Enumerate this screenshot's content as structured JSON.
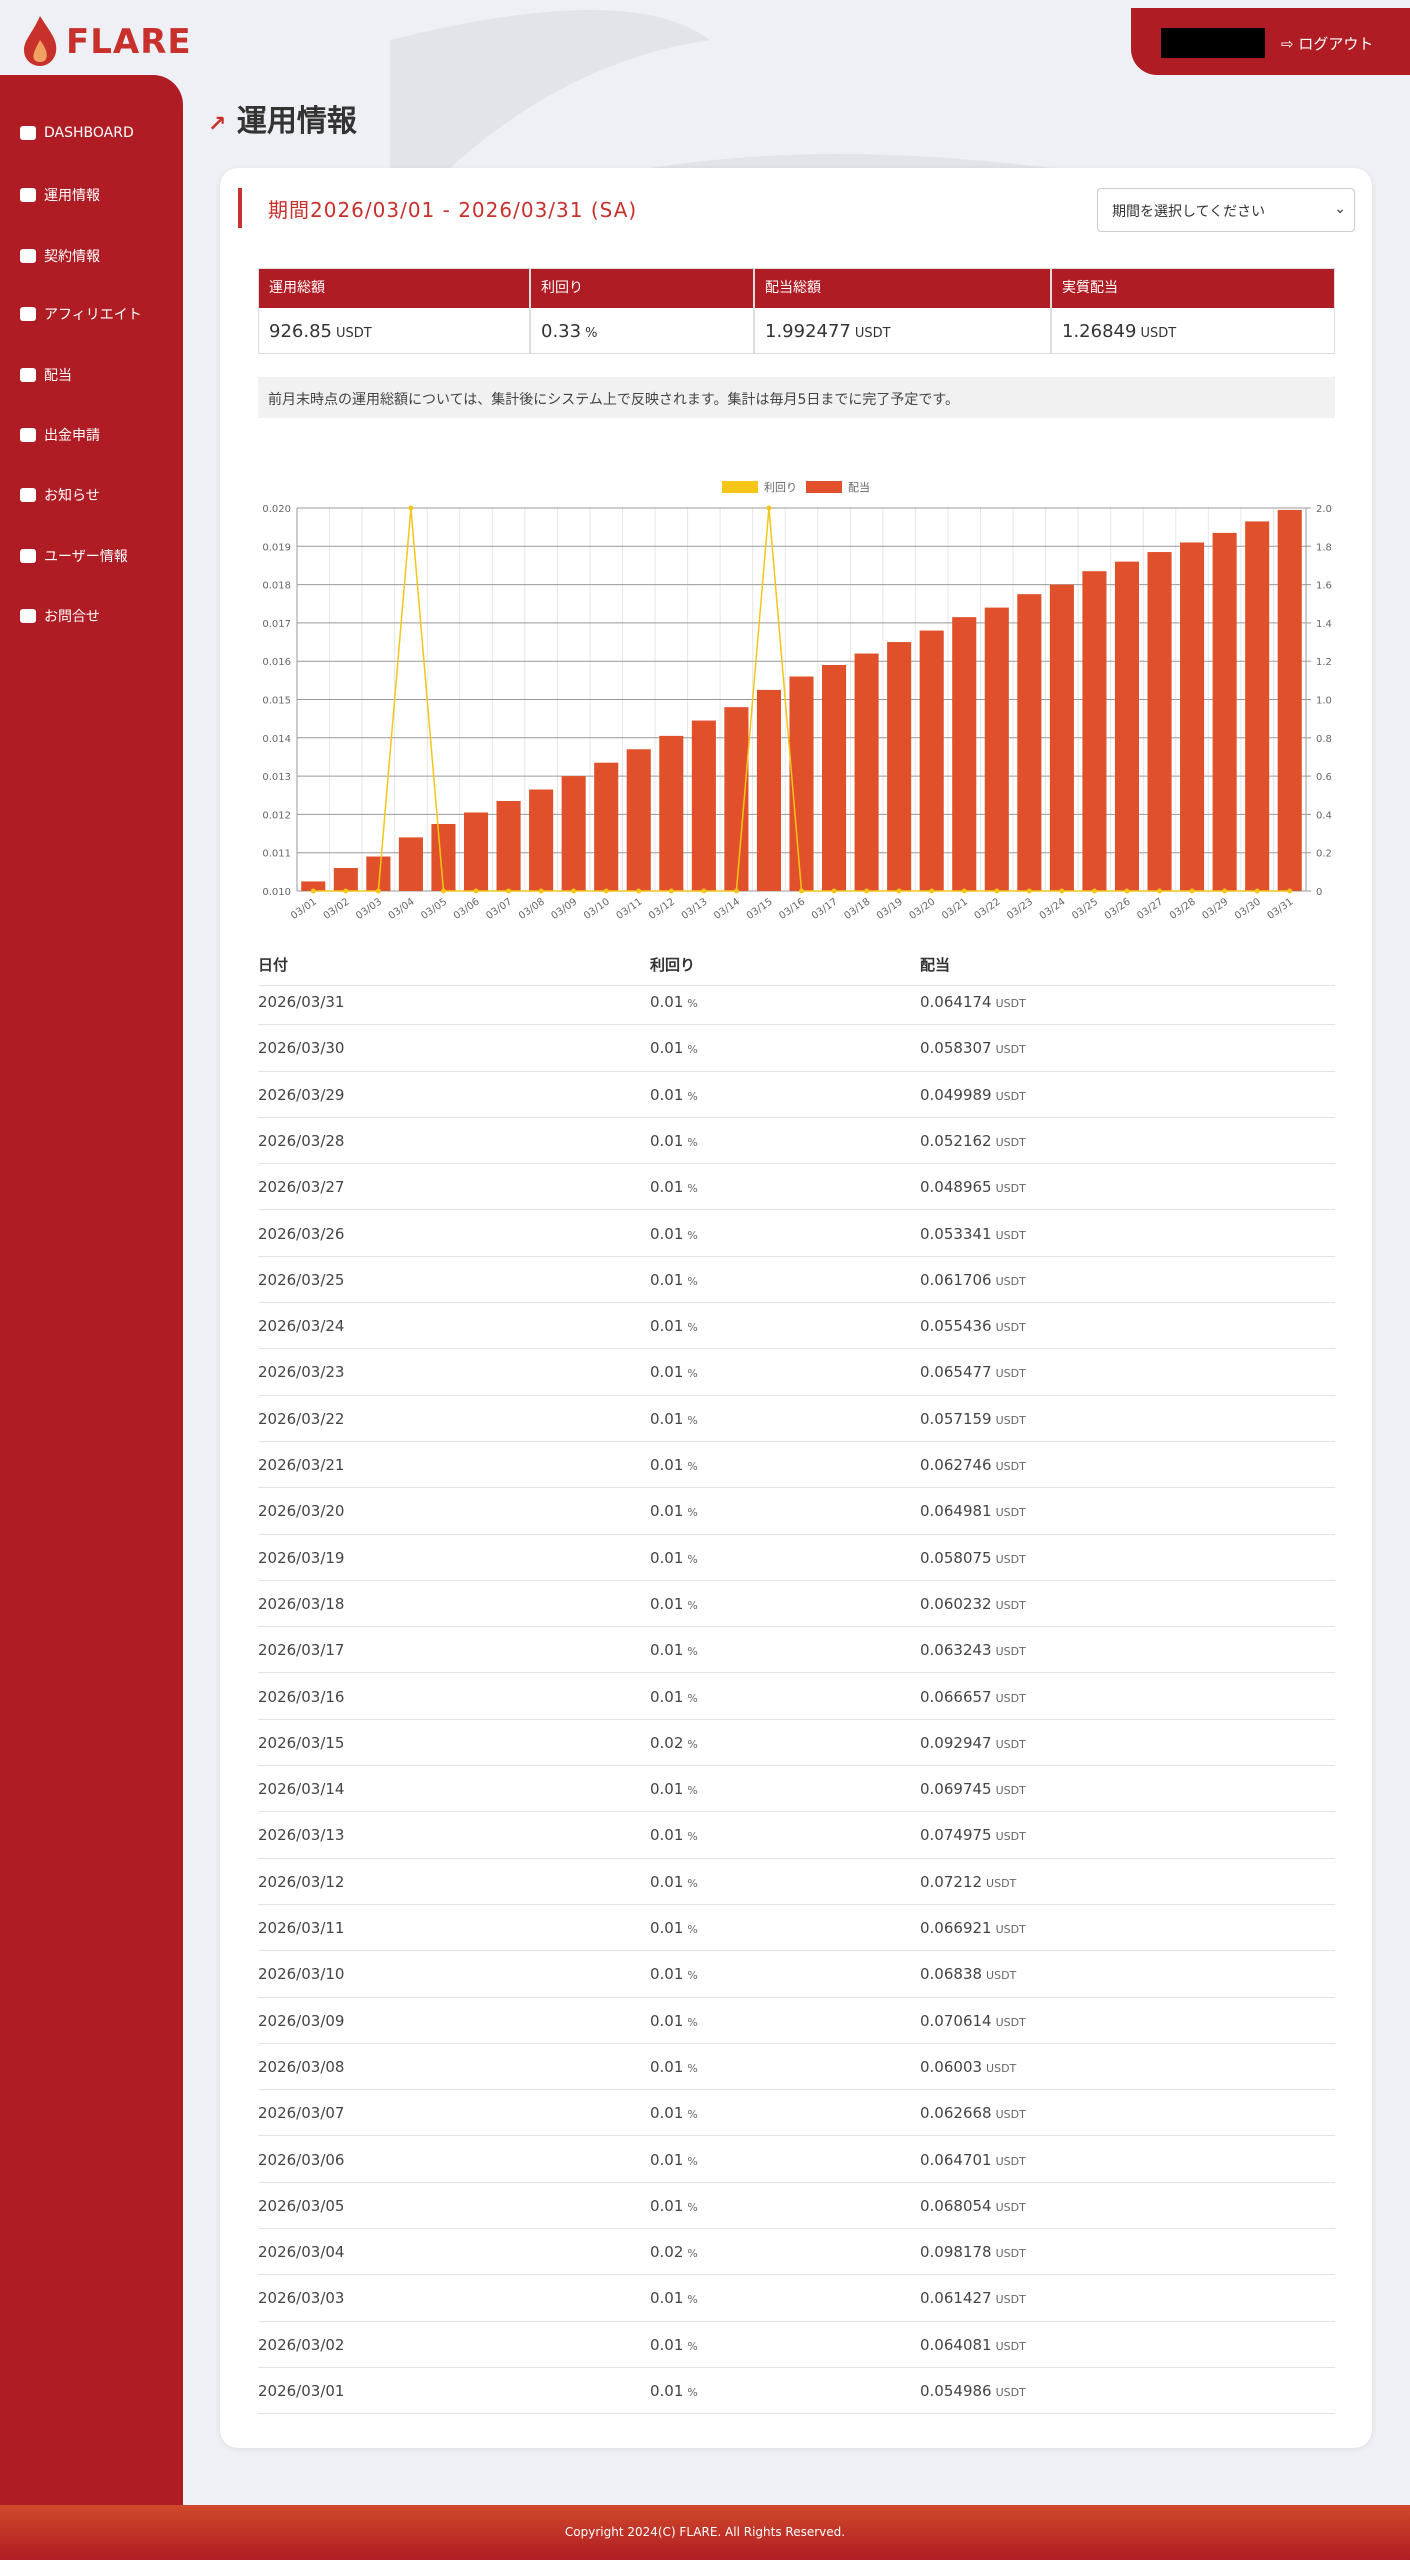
{
  "header": {
    "logo": "FLARE",
    "logout": "ログアウト"
  },
  "nav": {
    "items": [
      "DASHBOARD",
      "運用情報",
      "契約情報",
      "アフィリエイト",
      "配当",
      "出金申請",
      "お知らせ",
      "ユーザー情報",
      "お問合せ"
    ]
  },
  "page": {
    "title": "運用情報",
    "period": "期間2026/03/01 - 2026/03/31 (SA)",
    "select": "期間を選択してください"
  },
  "summary": {
    "headers": [
      "運用総額",
      "利回り",
      "配当総額",
      "実質配当"
    ],
    "values": [
      [
        "926.85",
        "USDT"
      ],
      [
        "0.33",
        "%"
      ],
      [
        "1.992477",
        "USDT"
      ],
      [
        "1.26849",
        "USDT"
      ]
    ]
  },
  "note": "前月末時点の運用総額については、集計後にシステム上で反映されます。集計は毎月5日までに完了予定です。",
  "chart_data": {
    "type": "bar",
    "grid": true,
    "categories": [
      "03/01",
      "03/02",
      "03/03",
      "03/04",
      "03/05",
      "03/06",
      "03/07",
      "03/08",
      "03/09",
      "03/10",
      "03/11",
      "03/12",
      "03/13",
      "03/14",
      "03/15",
      "03/16",
      "03/17",
      "03/18",
      "03/19",
      "03/20",
      "03/21",
      "03/22",
      "03/23",
      "03/24",
      "03/25",
      "03/26",
      "03/27",
      "03/28",
      "03/29",
      "03/30",
      "03/31"
    ],
    "series": [
      {
        "name": "利回り",
        "color": "#f5c518",
        "type": "line",
        "values": [
          0.01,
          0.01,
          0.01,
          0.02,
          0.01,
          0.01,
          0.01,
          0.01,
          0.01,
          0.01,
          0.01,
          0.01,
          0.01,
          0.01,
          0.02,
          0.01,
          0.01,
          0.01,
          0.01,
          0.01,
          0.01,
          0.01,
          0.01,
          0.01,
          0.01,
          0.01,
          0.01,
          0.01,
          0.01,
          0.01,
          0.01
        ]
      },
      {
        "name": "配当",
        "color": "#e0502a",
        "type": "bar",
        "axis": "y2",
        "values": [
          0.05,
          0.12,
          0.18,
          0.28,
          0.35,
          0.41,
          0.47,
          0.53,
          0.6,
          0.67,
          0.74,
          0.81,
          0.89,
          0.96,
          1.05,
          1.12,
          1.18,
          1.24,
          1.3,
          1.36,
          1.43,
          1.48,
          1.55,
          1.6,
          1.67,
          1.72,
          1.77,
          1.82,
          1.87,
          1.93,
          1.99
        ]
      }
    ],
    "ylim": [
      0.01,
      0.02
    ],
    "yticks": [
      {
        "value": 0.01,
        "label": "0.010"
      },
      {
        "value": 0.011,
        "label": "0.011"
      },
      {
        "value": 0.012,
        "label": "0.012"
      },
      {
        "value": 0.013,
        "label": "0.013"
      },
      {
        "value": 0.014,
        "label": "0.014"
      },
      {
        "value": 0.015,
        "label": "0.015"
      },
      {
        "value": 0.016,
        "label": "0.016"
      },
      {
        "value": 0.017,
        "label": "0.017"
      },
      {
        "value": 0.018,
        "label": "0.018"
      },
      {
        "value": 0.019,
        "label": "0.019"
      },
      {
        "value": 0.02,
        "label": "0.020"
      }
    ],
    "y2lim": [
      0,
      2
    ],
    "y2ticks": [
      0,
      {
        "value": 0.2,
        "label": "0.2"
      },
      {
        "value": 0.4,
        "label": "0.4"
      },
      {
        "value": 0.6,
        "label": "0.6"
      },
      {
        "value": 0.8,
        "label": "0.8"
      },
      {
        "value": 1,
        "label": "1.0"
      },
      {
        "value": 1.2,
        "label": "1.2"
      },
      {
        "value": 1.4,
        "label": "1.4"
      },
      {
        "value": 1.6,
        "label": "1.6"
      },
      {
        "value": 1.8,
        "label": "1.8"
      },
      {
        "value": 2,
        "label": "2.0"
      }
    ]
  },
  "table": {
    "headers": [
      "日付",
      "利回り",
      "配当"
    ],
    "units": [
      "%",
      "USDT"
    ],
    "rows": [
      [
        "2026/03/31",
        "0.01",
        "0.064174"
      ],
      [
        "2026/03/30",
        "0.01",
        "0.058307"
      ],
      [
        "2026/03/29",
        "0.01",
        "0.049989"
      ],
      [
        "2026/03/28",
        "0.01",
        "0.052162"
      ],
      [
        "2026/03/27",
        "0.01",
        "0.048965"
      ],
      [
        "2026/03/26",
        "0.01",
        "0.053341"
      ],
      [
        "2026/03/25",
        "0.01",
        "0.061706"
      ],
      [
        "2026/03/24",
        "0.01",
        "0.055436"
      ],
      [
        "2026/03/23",
        "0.01",
        "0.065477"
      ],
      [
        "2026/03/22",
        "0.01",
        "0.057159"
      ],
      [
        "2026/03/21",
        "0.01",
        "0.062746"
      ],
      [
        "2026/03/20",
        "0.01",
        "0.064981"
      ],
      [
        "2026/03/19",
        "0.01",
        "0.058075"
      ],
      [
        "2026/03/18",
        "0.01",
        "0.060232"
      ],
      [
        "2026/03/17",
        "0.01",
        "0.063243"
      ],
      [
        "2026/03/16",
        "0.01",
        "0.066657"
      ],
      [
        "2026/03/15",
        "0.02",
        "0.092947"
      ],
      [
        "2026/03/14",
        "0.01",
        "0.069745"
      ],
      [
        "2026/03/13",
        "0.01",
        "0.074975"
      ],
      [
        "2026/03/12",
        "0.01",
        "0.07212"
      ],
      [
        "2026/03/11",
        "0.01",
        "0.066921"
      ],
      [
        "2026/03/10",
        "0.01",
        "0.06838"
      ],
      [
        "2026/03/09",
        "0.01",
        "0.070614"
      ],
      [
        "2026/03/08",
        "0.01",
        "0.06003"
      ],
      [
        "2026/03/07",
        "0.01",
        "0.062668"
      ],
      [
        "2026/03/06",
        "0.01",
        "0.064701"
      ],
      [
        "2026/03/05",
        "0.01",
        "0.068054"
      ],
      [
        "2026/03/04",
        "0.02",
        "0.098178"
      ],
      [
        "2026/03/03",
        "0.01",
        "0.061427"
      ],
      [
        "2026/03/02",
        "0.01",
        "0.064081"
      ],
      [
        "2026/03/01",
        "0.01",
        "0.054986"
      ]
    ]
  },
  "footer": "Copyright 2024(C) FLARE. All Rights Reserved."
}
